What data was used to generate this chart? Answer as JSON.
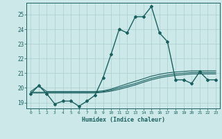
{
  "xlabel": "Humidex (Indice chaleur)",
  "xlim": [
    -0.5,
    23.5
  ],
  "ylim": [
    18.6,
    25.8
  ],
  "xtick_labels": [
    "0",
    "1",
    "2",
    "3",
    "4",
    "5",
    "6",
    "7",
    "8",
    "9",
    "10",
    "11",
    "12",
    "13",
    "14",
    "15",
    "16",
    "17",
    "18",
    "19",
    "20",
    "21",
    "22",
    "23"
  ],
  "ytick_labels": [
    "19",
    "20",
    "21",
    "22",
    "23",
    "24",
    "25"
  ],
  "ytick_values": [
    19,
    20,
    21,
    22,
    23,
    24,
    25
  ],
  "background_color": "#cce8e8",
  "grid_color": "#aacece",
  "line_color": "#1a6060",
  "line1": {
    "x": [
      0,
      1,
      2,
      3,
      4,
      5,
      6,
      7,
      8,
      9,
      10,
      11,
      12,
      13,
      14,
      15,
      16,
      17,
      18,
      19,
      20,
      21,
      22,
      23
    ],
    "y": [
      19.6,
      20.15,
      19.6,
      18.9,
      19.1,
      19.1,
      18.75,
      19.1,
      19.5,
      20.7,
      22.3,
      24.0,
      23.75,
      24.85,
      24.85,
      25.55,
      23.75,
      23.15,
      20.55,
      20.55,
      20.3,
      21.1,
      20.55,
      20.55
    ],
    "marker": "D",
    "markersize": 2.0,
    "linewidth": 1.0
  },
  "line2": {
    "x": [
      0,
      1,
      2,
      3,
      4,
      5,
      6,
      7,
      8,
      9,
      10,
      11,
      12,
      13,
      14,
      15,
      16,
      17,
      18,
      19,
      20,
      21,
      22,
      23
    ],
    "y": [
      19.65,
      19.65,
      19.65,
      19.65,
      19.65,
      19.65,
      19.65,
      19.65,
      19.65,
      19.7,
      19.78,
      19.9,
      20.05,
      20.2,
      20.38,
      20.55,
      20.68,
      20.78,
      20.85,
      20.9,
      20.95,
      20.95,
      20.95,
      20.95
    ],
    "linewidth": 0.8
  },
  "line3": {
    "x": [
      0,
      1,
      2,
      3,
      4,
      5,
      6,
      7,
      8,
      9,
      10,
      11,
      12,
      13,
      14,
      15,
      16,
      17,
      18,
      19,
      20,
      21,
      22,
      23
    ],
    "y": [
      19.7,
      19.7,
      19.7,
      19.7,
      19.7,
      19.7,
      19.7,
      19.7,
      19.7,
      19.75,
      19.85,
      20.0,
      20.15,
      20.3,
      20.48,
      20.65,
      20.78,
      20.88,
      20.95,
      21.0,
      21.05,
      21.05,
      21.05,
      21.05
    ],
    "linewidth": 0.8
  },
  "line4": {
    "x": [
      0,
      1,
      2,
      3,
      4,
      5,
      6,
      7,
      8,
      9,
      10,
      11,
      12,
      13,
      14,
      15,
      16,
      17,
      18,
      19,
      20,
      21,
      22,
      23
    ],
    "y": [
      19.75,
      20.15,
      19.75,
      19.75,
      19.75,
      19.75,
      19.75,
      19.75,
      19.75,
      19.8,
      19.92,
      20.1,
      20.28,
      20.45,
      20.62,
      20.8,
      20.92,
      21.02,
      21.08,
      21.12,
      21.16,
      21.16,
      21.16,
      21.16
    ],
    "linewidth": 0.8
  }
}
